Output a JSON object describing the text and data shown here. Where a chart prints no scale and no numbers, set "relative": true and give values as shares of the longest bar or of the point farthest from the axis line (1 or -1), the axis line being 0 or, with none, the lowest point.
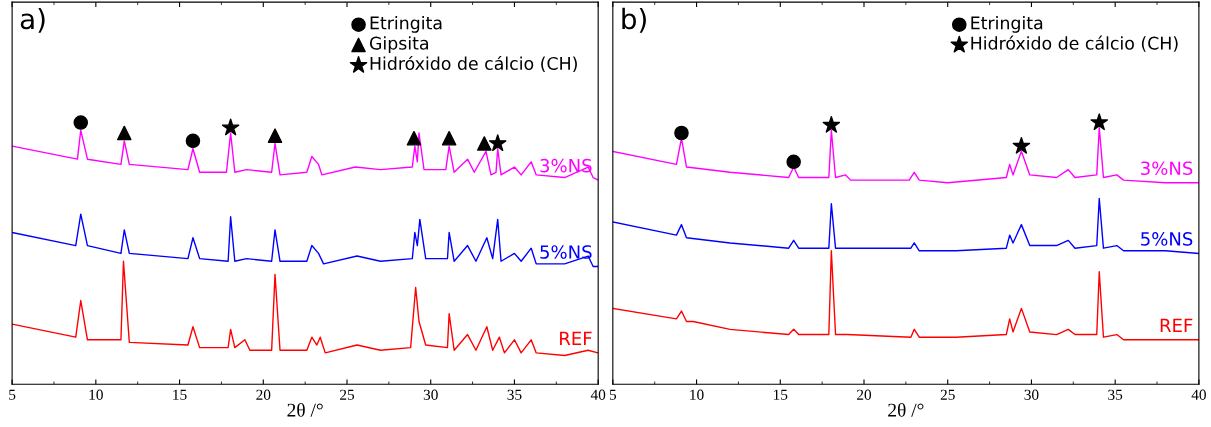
{
  "chart_data": [
    {
      "type": "line",
      "title": "a)",
      "xlabel": "2θ /°",
      "relative": true,
      "xlim": [
        5,
        40
      ],
      "xticks": [
        5,
        10,
        15,
        20,
        25,
        30,
        35,
        40
      ],
      "tick_labels": "x",
      "grid": false,
      "legend": "top right",
      "series": [
        {
          "name": "3%NS",
          "color": "#ff00ff",
          "x": [
            5,
            8.9,
            9.1,
            9.5,
            11.5,
            11.7,
            12,
            15.5,
            15.8,
            16.2,
            17.8,
            18.05,
            18.3,
            19,
            20.5,
            20.7,
            21,
            22.6,
            22.9,
            23.3,
            23.5,
            25.5,
            27,
            28.9,
            29.05,
            29.2,
            29.3,
            29.6,
            30.9,
            31.1,
            31.4,
            32.2,
            32.6,
            33.3,
            33.6,
            33.9,
            34,
            34.2,
            35,
            35.4,
            36,
            36.3,
            38,
            39.4,
            39.7,
            40
          ],
          "values": [
            0.91,
            0.86,
            0.97,
            0.86,
            0.84,
            0.93,
            0.84,
            0.82,
            0.9,
            0.81,
            0.81,
            0.96,
            0.81,
            0.82,
            0.81,
            0.92,
            0.8,
            0.81,
            0.87,
            0.84,
            0.8,
            0.83,
            0.82,
            0.83,
            0.91,
            0.85,
            0.96,
            0.82,
            0.82,
            0.91,
            0.81,
            0.86,
            0.81,
            0.89,
            0.8,
            0.81,
            0.9,
            0.8,
            0.83,
            0.8,
            0.85,
            0.8,
            0.79,
            0.83,
            0.79,
            0.78
          ]
        },
        {
          "name": "5%NS",
          "color": "#0000ff",
          "x": [
            5,
            8.8,
            9.1,
            9.5,
            11.5,
            11.7,
            12,
            15.5,
            15.8,
            16.2,
            17.9,
            18.05,
            18.3,
            19,
            20.5,
            20.7,
            21,
            22.6,
            22.9,
            23.3,
            23.6,
            25.6,
            27,
            28.9,
            29.05,
            29.2,
            29.35,
            29.7,
            31,
            31.1,
            31.4,
            32.2,
            32.7,
            33.35,
            33.7,
            34,
            34.2,
            35,
            35.4,
            36,
            36.3,
            38,
            39.4,
            39.7,
            40
          ],
          "values": [
            0.58,
            0.53,
            0.65,
            0.53,
            0.5,
            0.59,
            0.5,
            0.48,
            0.56,
            0.48,
            0.47,
            0.64,
            0.47,
            0.48,
            0.47,
            0.59,
            0.47,
            0.47,
            0.53,
            0.5,
            0.46,
            0.49,
            0.47,
            0.48,
            0.58,
            0.53,
            0.63,
            0.48,
            0.48,
            0.58,
            0.47,
            0.53,
            0.47,
            0.56,
            0.48,
            0.63,
            0.47,
            0.5,
            0.47,
            0.52,
            0.46,
            0.46,
            0.49,
            0.45,
            0.45
          ]
        },
        {
          "name": "REF",
          "color": "#ff0000",
          "x": [
            5,
            8.8,
            9.1,
            9.5,
            11.5,
            11.65,
            12,
            15.5,
            15.8,
            16.2,
            17.9,
            18.05,
            18.3,
            18.9,
            19.2,
            20.5,
            20.7,
            21,
            22.6,
            22.9,
            23.2,
            23.4,
            23.7,
            25.6,
            27,
            28.8,
            29.1,
            29.3,
            29.7,
            31,
            31.1,
            31.4,
            32.2,
            32.7,
            33.35,
            33.7,
            34.1,
            34.4,
            35,
            35.4,
            36,
            36.3,
            38,
            39.4,
            40
          ],
          "values": [
            0.23,
            0.18,
            0.32,
            0.17,
            0.17,
            0.47,
            0.16,
            0.15,
            0.22,
            0.14,
            0.14,
            0.21,
            0.14,
            0.17,
            0.13,
            0.13,
            0.42,
            0.13,
            0.13,
            0.18,
            0.15,
            0.18,
            0.12,
            0.15,
            0.13,
            0.14,
            0.37,
            0.24,
            0.15,
            0.14,
            0.27,
            0.13,
            0.19,
            0.13,
            0.22,
            0.13,
            0.18,
            0.12,
            0.17,
            0.12,
            0.17,
            0.12,
            0.11,
            0.13,
            0.12
          ]
        },
        {
          "name": "Etringita",
          "type": "scatter",
          "marker": "circle",
          "color": "#000000",
          "x": [
            9.1,
            15.8
          ],
          "values": [
            1.0,
            0.93
          ]
        },
        {
          "name": "Gipsita",
          "type": "scatter",
          "marker": "triangle",
          "color": "#000000",
          "x": [
            11.7,
            20.7,
            29.0,
            31.1,
            33.2
          ],
          "values": [
            0.96,
            0.95,
            0.94,
            0.94,
            0.92
          ]
        },
        {
          "name": "Hidróxido de cálcio (CH)",
          "type": "scatter",
          "marker": "star",
          "color": "#000000",
          "x": [
            18.05,
            34.0
          ],
          "values": [
            0.98,
            0.92
          ]
        }
      ]
    },
    {
      "type": "line",
      "title": "b)",
      "xlabel": "2θ /°",
      "relative": true,
      "xlim": [
        5,
        40
      ],
      "xticks": [
        5,
        10,
        15,
        20,
        25,
        30,
        35,
        40
      ],
      "tick_labels": "x",
      "grid": false,
      "legend": "top right",
      "series": [
        {
          "name": "3%NS",
          "color": "#ff00ff",
          "x": [
            5,
            8.8,
            9.1,
            9.4,
            12,
            15.5,
            15.8,
            16.1,
            17.9,
            18.05,
            18.3,
            18.9,
            19.2,
            22.7,
            23,
            23.3,
            25,
            28.5,
            28.7,
            28.9,
            29.4,
            29.9,
            31.5,
            32.2,
            32.6,
            33.9,
            34.05,
            34.3,
            35.1,
            35.5,
            38,
            40
          ],
          "values": [
            0.89,
            0.84,
            0.94,
            0.83,
            0.81,
            0.79,
            0.83,
            0.79,
            0.79,
            0.97,
            0.79,
            0.8,
            0.78,
            0.78,
            0.81,
            0.78,
            0.77,
            0.79,
            0.84,
            0.8,
            0.89,
            0.8,
            0.79,
            0.82,
            0.79,
            0.8,
            0.98,
            0.79,
            0.8,
            0.78,
            0.77,
            0.77
          ]
        },
        {
          "name": "5%NS",
          "color": "#0000ff",
          "x": [
            5,
            8.8,
            9.1,
            9.4,
            12,
            15.5,
            15.8,
            16.1,
            17.9,
            18.05,
            18.3,
            19,
            22.8,
            23,
            23.3,
            25.5,
            28.5,
            28.7,
            28.9,
            29.4,
            29.9,
            31.5,
            32.2,
            32.6,
            33.9,
            34.05,
            34.3,
            35.1,
            35.5,
            38,
            40
          ],
          "values": [
            0.62,
            0.57,
            0.61,
            0.56,
            0.54,
            0.52,
            0.55,
            0.52,
            0.52,
            0.69,
            0.52,
            0.52,
            0.52,
            0.54,
            0.51,
            0.51,
            0.52,
            0.57,
            0.54,
            0.61,
            0.53,
            0.53,
            0.55,
            0.52,
            0.53,
            0.71,
            0.52,
            0.53,
            0.51,
            0.51,
            0.5
          ]
        },
        {
          "name": "REF",
          "color": "#ff0000",
          "x": [
            5,
            8.8,
            9.1,
            9.4,
            9.8,
            12,
            15.5,
            15.8,
            16.1,
            17.9,
            18.05,
            18.3,
            19,
            22.8,
            23,
            23.3,
            25.5,
            28.5,
            28.7,
            28.9,
            29.4,
            29.9,
            31.5,
            32.2,
            32.6,
            33.9,
            34.05,
            34.3,
            35.1,
            35.5,
            38,
            40
          ],
          "values": [
            0.29,
            0.25,
            0.28,
            0.24,
            0.24,
            0.21,
            0.19,
            0.21,
            0.19,
            0.19,
            0.51,
            0.19,
            0.19,
            0.18,
            0.21,
            0.18,
            0.18,
            0.19,
            0.25,
            0.2,
            0.29,
            0.2,
            0.19,
            0.21,
            0.19,
            0.19,
            0.43,
            0.18,
            0.19,
            0.17,
            0.17,
            0.17
          ]
        },
        {
          "name": "Etringita",
          "type": "scatter",
          "marker": "circle",
          "color": "#000000",
          "x": [
            9.1,
            15.8
          ],
          "values": [
            0.96,
            0.85
          ]
        },
        {
          "name": "Hidróxido de cálcio (CH)",
          "type": "scatter",
          "marker": "star",
          "color": "#000000",
          "x": [
            18.05,
            29.4,
            34.05
          ],
          "values": [
            0.99,
            0.91,
            1.0
          ]
        }
      ]
    }
  ]
}
